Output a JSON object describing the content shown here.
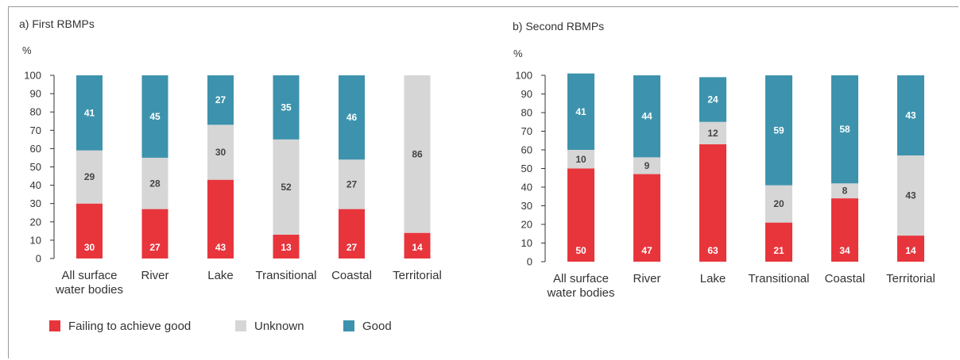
{
  "colors": {
    "failing": "#e8353c",
    "unknown": "#d6d6d6",
    "good": "#3d93ad",
    "axis": "#333333"
  },
  "legend": {
    "failing": "Failing to achieve good",
    "unknown": "Unknown",
    "good": "Good"
  },
  "chart_data": [
    {
      "type": "bar",
      "stacked": true,
      "title": "a) First RBMPs",
      "ylabel": "%",
      "ylim": [
        0,
        100
      ],
      "yticks": [
        "0",
        "10",
        "20",
        "30",
        "40",
        "50",
        "60",
        "70",
        "80",
        "90",
        "100"
      ],
      "categories": [
        [
          "All surface",
          "water bodies"
        ],
        [
          "River"
        ],
        [
          "Lake"
        ],
        [
          "Transitional"
        ],
        [
          "Coastal"
        ],
        [
          "Territorial"
        ]
      ],
      "series": [
        {
          "name": "Failing to achieve good",
          "values": [
            30,
            27,
            43,
            13,
            27,
            14
          ]
        },
        {
          "name": "Unknown",
          "values": [
            29,
            28,
            30,
            52,
            27,
            86
          ]
        },
        {
          "name": "Good",
          "values": [
            41,
            45,
            27,
            35,
            46,
            0
          ]
        }
      ]
    },
    {
      "type": "bar",
      "stacked": true,
      "title": "b) Second RBMPs",
      "ylabel": "%",
      "ylim": [
        0,
        100
      ],
      "yticks": [
        "0",
        "10",
        "20",
        "30",
        "40",
        "50",
        "60",
        "70",
        "80",
        "90",
        "100"
      ],
      "categories": [
        [
          "All surface",
          "water bodies"
        ],
        [
          "River"
        ],
        [
          "Lake"
        ],
        [
          "Transitional"
        ],
        [
          "Coastal"
        ],
        [
          "Territorial"
        ]
      ],
      "series": [
        {
          "name": "Failing to achieve good",
          "values": [
            50,
            47,
            63,
            21,
            34,
            14
          ]
        },
        {
          "name": "Unknown",
          "values": [
            10,
            9,
            12,
            20,
            8,
            43
          ]
        },
        {
          "name": "Good",
          "values": [
            41,
            44,
            24,
            59,
            58,
            43
          ]
        }
      ]
    }
  ]
}
